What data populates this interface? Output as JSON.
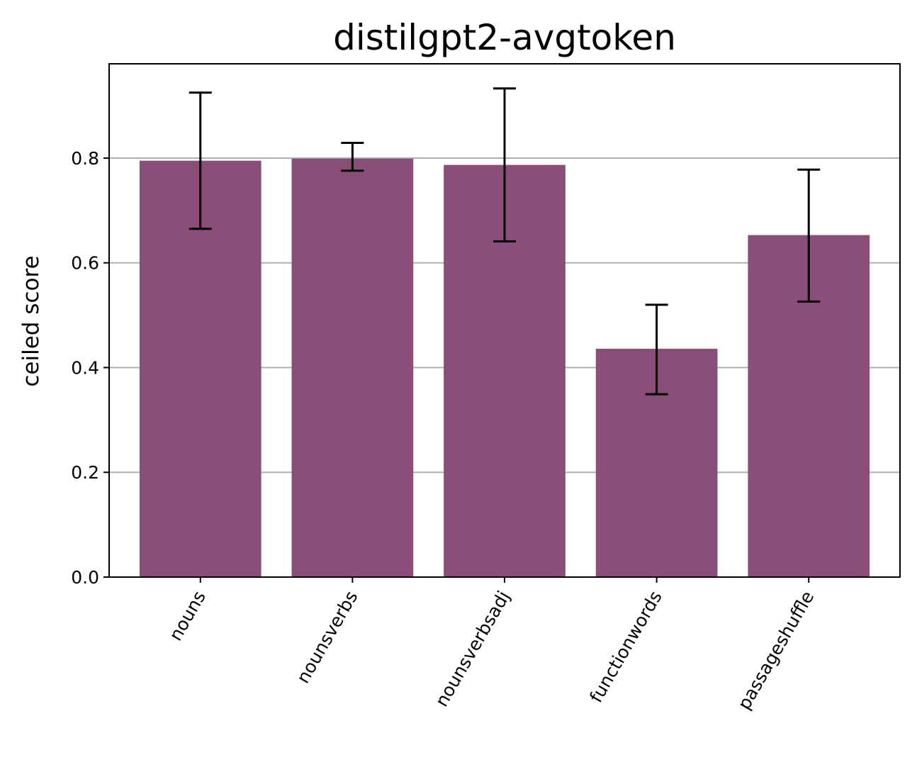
{
  "chart_data": {
    "type": "bar",
    "title": "distilgpt2-avgtoken",
    "xlabel": "",
    "ylabel": "ceiled score",
    "categories": [
      "nouns",
      "nounsverbs",
      "nounsverbsadj",
      "functionwords",
      "passageshuffle"
    ],
    "values": [
      0.795,
      0.799,
      0.787,
      0.436,
      0.653
    ],
    "error_low": [
      0.665,
      0.776,
      0.641,
      0.349,
      0.526
    ],
    "error_high": [
      0.925,
      0.829,
      0.933,
      0.52,
      0.778
    ],
    "ylim": [
      0,
      0.98
    ],
    "yticks": [
      "0.0",
      "0.2",
      "0.4",
      "0.6",
      "0.8"
    ],
    "grid": "y",
    "bar_color": "#8b4e79"
  }
}
